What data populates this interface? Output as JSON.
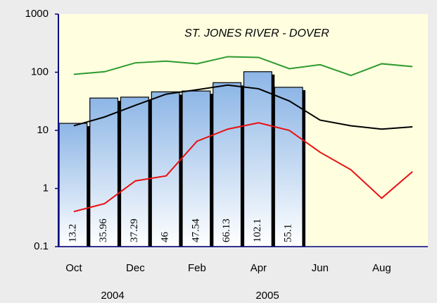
{
  "chart_data": {
    "type": "bar-line",
    "title": "ST. JONES RIVER - DOVER",
    "categories": [
      "Oct",
      null,
      "Dec",
      null,
      "Feb",
      null,
      "Apr",
      null,
      "Jun",
      null,
      "Aug",
      null
    ],
    "year_labels": [
      "2004",
      "2005"
    ],
    "bars": {
      "color": "#8db6e6",
      "values": [
        13.2,
        35.96,
        37.29,
        46,
        47.54,
        66.13,
        102.1,
        55.1
      ]
    },
    "series": [
      {
        "color": "#2e9a2e",
        "values": [
          92,
          102,
          145,
          155,
          140,
          185,
          180,
          115,
          135,
          88,
          140,
          125
        ]
      },
      {
        "color": "#000000",
        "values": [
          12,
          17,
          27,
          42,
          50,
          60,
          52,
          32,
          15,
          12,
          10.5,
          11.5
        ]
      },
      {
        "color": "#e81010",
        "values": [
          0.4,
          0.55,
          1.35,
          1.65,
          6.5,
          10.5,
          13.5,
          10,
          4.2,
          2.1,
          0.68,
          1.95
        ]
      }
    ],
    "log_y": true,
    "ylim": [
      0.1,
      1000
    ],
    "yticks": [
      0.1,
      1,
      10,
      100,
      1000
    ]
  }
}
